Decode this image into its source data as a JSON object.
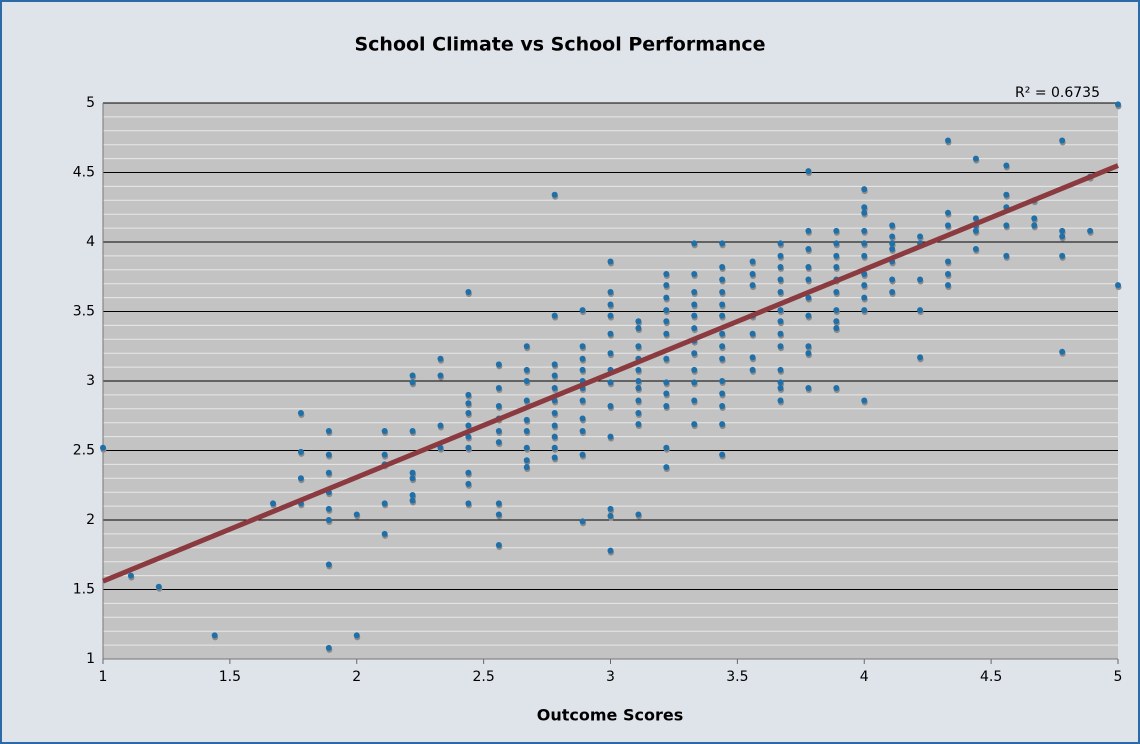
{
  "chart_data": {
    "type": "scatter",
    "title": "School Climate vs School Performance",
    "x_label": "Outcome Scores",
    "annotation": "R² = 0.6735",
    "color": "#1f6fa8",
    "x": [
      1,
      1.11,
      1.22,
      1.44,
      1.67,
      1.78,
      1.78,
      1.78,
      1.78,
      1.89,
      1.89,
      1.89,
      1.89,
      1.89,
      1.89,
      1.89,
      1.89,
      2,
      2,
      2.11,
      2.11,
      2.11,
      2.11,
      2.11,
      2.22,
      2.22,
      2.22,
      2.22,
      2.22,
      2.22,
      2.22,
      2.33,
      2.33,
      2.33,
      2.33,
      2.44,
      2.44,
      2.44,
      2.44,
      2.44,
      2.44,
      2.44,
      2.44,
      2.44,
      2.44,
      2.56,
      2.56,
      2.56,
      2.56,
      2.56,
      2.56,
      2.56,
      2.56,
      2.56,
      2.67,
      2.67,
      2.67,
      2.67,
      2.67,
      2.67,
      2.67,
      2.67,
      2.67,
      2.78,
      2.78,
      2.78,
      2.78,
      2.78,
      2.78,
      2.78,
      2.78,
      2.78,
      2.78,
      2.78,
      2.89,
      2.89,
      2.89,
      2.89,
      2.89,
      2.89,
      2.89,
      2.89,
      2.89,
      2.89,
      2.89,
      3,
      3,
      3,
      3,
      3,
      3,
      3,
      3,
      3,
      3,
      3,
      3,
      3,
      3.11,
      3.11,
      3.11,
      3.11,
      3.11,
      3.11,
      3.11,
      3.11,
      3.11,
      3.11,
      3.11,
      3.22,
      3.22,
      3.22,
      3.22,
      3.22,
      3.22,
      3.22,
      3.22,
      3.22,
      3.22,
      3.22,
      3.22,
      3.33,
      3.33,
      3.33,
      3.33,
      3.33,
      3.33,
      3.33,
      3.33,
      3.33,
      3.33,
      3.33,
      3.33,
      3.44,
      3.44,
      3.44,
      3.44,
      3.44,
      3.44,
      3.44,
      3.44,
      3.44,
      3.44,
      3.44,
      3.44,
      3.44,
      3.44,
      3.56,
      3.56,
      3.56,
      3.56,
      3.56,
      3.56,
      3.56,
      3.67,
      3.67,
      3.67,
      3.67,
      3.67,
      3.67,
      3.67,
      3.67,
      3.67,
      3.67,
      3.67,
      3.67,
      3.67,
      3.78,
      3.78,
      3.78,
      3.78,
      3.78,
      3.78,
      3.78,
      3.78,
      3.78,
      3.78,
      3.89,
      3.89,
      3.89,
      3.89,
      3.89,
      3.89,
      3.89,
      3.89,
      3.89,
      3.89,
      4,
      4,
      4,
      4,
      4,
      4,
      4,
      4,
      4,
      4,
      4,
      4.11,
      4.11,
      4.11,
      4.11,
      4.11,
      4.11,
      4.11,
      4.22,
      4.22,
      4.22,
      4.22,
      4.22,
      4.33,
      4.33,
      4.33,
      4.33,
      4.33,
      4.33,
      4.44,
      4.44,
      4.44,
      4.44,
      4.44,
      4.56,
      4.56,
      4.56,
      4.56,
      4.56,
      4.67,
      4.67,
      4.67,
      4.78,
      4.78,
      4.78,
      4.78,
      4.78,
      4.89,
      4.89,
      5,
      5
    ],
    "values": [
      2.52,
      1.6,
      1.52,
      1.17,
      2.12,
      2.77,
      2.49,
      2.3,
      2.12,
      2.64,
      2.47,
      2.34,
      2.2,
      2.08,
      2.0,
      1.68,
      1.08,
      2.04,
      1.17,
      2.64,
      2.47,
      2.4,
      2.12,
      1.9,
      3.04,
      2.99,
      2.64,
      2.34,
      2.3,
      2.18,
      2.14,
      3.16,
      3.04,
      2.68,
      2.52,
      3.64,
      2.9,
      2.84,
      2.77,
      2.68,
      2.6,
      2.52,
      2.34,
      2.26,
      2.12,
      3.12,
      2.95,
      2.82,
      2.73,
      2.64,
      2.56,
      2.12,
      2.04,
      1.82,
      3.25,
      3.08,
      3.0,
      2.86,
      2.72,
      2.64,
      2.52,
      2.43,
      2.38,
      4.34,
      3.47,
      3.12,
      3.04,
      2.95,
      2.86,
      2.77,
      2.68,
      2.6,
      2.52,
      2.45,
      3.51,
      3.25,
      3.16,
      3.08,
      3.0,
      2.95,
      2.86,
      2.73,
      2.64,
      2.47,
      1.99,
      3.86,
      3.64,
      3.55,
      3.47,
      3.34,
      3.2,
      3.08,
      2.99,
      2.82,
      2.6,
      2.08,
      2.03,
      1.78,
      3.43,
      3.38,
      3.25,
      3.16,
      3.08,
      3.0,
      2.95,
      2.86,
      2.77,
      2.69,
      2.04,
      3.77,
      3.69,
      3.6,
      3.51,
      3.43,
      3.34,
      3.16,
      2.99,
      2.91,
      2.82,
      2.52,
      2.38,
      3.99,
      3.77,
      3.64,
      3.55,
      3.47,
      3.38,
      3.29,
      3.2,
      3.08,
      2.99,
      2.86,
      2.69,
      3.99,
      3.82,
      3.73,
      3.64,
      3.55,
      3.47,
      3.34,
      3.25,
      3.16,
      3.0,
      2.91,
      2.82,
      2.69,
      2.47,
      3.86,
      3.77,
      3.69,
      3.47,
      3.34,
      3.17,
      3.08,
      3.99,
      3.9,
      3.82,
      3.73,
      3.64,
      3.51,
      3.43,
      3.34,
      3.25,
      3.08,
      2.99,
      2.95,
      2.86,
      4.51,
      4.08,
      3.95,
      3.82,
      3.73,
      3.6,
      3.47,
      3.25,
      3.2,
      2.95,
      4.08,
      3.99,
      3.9,
      3.82,
      3.73,
      3.64,
      3.51,
      3.43,
      3.38,
      2.95,
      4.38,
      4.25,
      4.21,
      4.08,
      3.99,
      3.9,
      3.77,
      3.69,
      3.6,
      3.51,
      2.86,
      4.12,
      4.04,
      3.99,
      3.95,
      3.86,
      3.73,
      3.64,
      4.04,
      3.99,
      3.73,
      3.51,
      3.17,
      4.73,
      4.21,
      4.12,
      3.86,
      3.77,
      3.69,
      4.6,
      4.17,
      4.12,
      4.08,
      3.95,
      4.55,
      4.34,
      4.25,
      4.12,
      3.9,
      4.3,
      4.17,
      4.12,
      4.73,
      4.08,
      4.04,
      3.9,
      3.21,
      4.47,
      4.08,
      4.99,
      3.69
    ],
    "trendline": {
      "x": [
        1,
        5
      ],
      "values": [
        1.56,
        4.55
      ],
      "color": "#8b3a3f"
    },
    "xlim": [
      1,
      5
    ],
    "ylim": [
      1,
      5
    ],
    "xticks": [
      1,
      1.5,
      2,
      2.5,
      3,
      3.5,
      4,
      4.5,
      5
    ],
    "yticks": [
      1,
      1.5,
      2,
      2.5,
      3,
      3.5,
      4,
      4.5,
      5
    ],
    "grid": true,
    "minor_grid": 0.1
  }
}
